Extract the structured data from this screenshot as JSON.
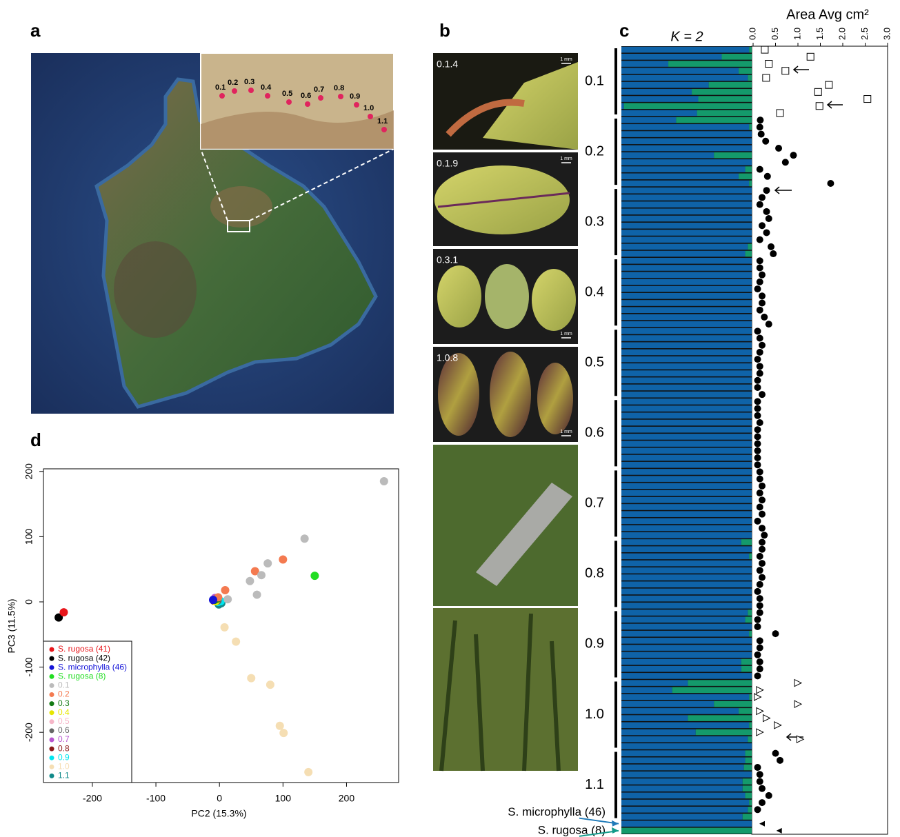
{
  "panel_labels": [
    "a",
    "b",
    "c",
    "d"
  ],
  "map": {
    "inset_labels": [
      "0.1",
      "0.2",
      "0.3",
      "0.4",
      "0.5",
      "0.6",
      "0.7",
      "0.8",
      "0.9",
      "1.0",
      "1.1"
    ]
  },
  "photos": {
    "labels": [
      "0.1.4",
      "0.1.9",
      "0.3.1",
      "1.0.8"
    ],
    "scale_bar": "1 mm"
  },
  "chart_data": [
    {
      "type": "structure",
      "structure_label": "K = 2",
      "area_axis_title": "Area Avg cm²",
      "cluster_colors": [
        "#0f63a8",
        "#149a6b"
      ],
      "xlim": [
        0,
        3
      ],
      "xticks": [
        {
          "value": 0,
          "label": "0.0"
        },
        0.5,
        {
          "value": 1,
          "label": "1.0"
        },
        1.5,
        {
          "value": 2,
          "label": "2.0"
        },
        2.5,
        {
          "value": 3,
          "label": "3.0"
        }
      ],
      "groups": [
        {
          "name": "0.1",
          "marker": "square",
          "q": [
            0.02,
            0.23,
            0.64,
            0.1,
            0.03,
            0.33,
            0.46,
            0.41,
            0.98,
            0.42
          ],
          "area": [
            0.26,
            1.28,
            0.35,
            0.72,
            0.29,
            1.69,
            1.45,
            2.55,
            1.48,
            0.6
          ]
        },
        {
          "name": "0.2",
          "marker": "circle",
          "q": [
            0.58,
            0.02,
            0,
            0,
            0,
            0.29,
            0,
            0.05,
            0.1,
            0.02
          ],
          "area": [
            0.16,
            0.15,
            0.18,
            0.28,
            0.57,
            0.9,
            0.72,
            0.15,
            0.32,
            1.73
          ]
        },
        {
          "name": "0.3",
          "marker": "circle",
          "q": [
            0,
            0,
            0,
            0,
            0,
            0,
            0,
            0,
            0.03,
            0.05
          ],
          "area": [
            0.3,
            0.2,
            0.15,
            0.3,
            0.35,
            0.2,
            0.3,
            0.15,
            0.4,
            0.45
          ]
        },
        {
          "name": "0.4",
          "marker": "circle",
          "q": [
            0,
            0,
            0,
            0,
            0,
            0,
            0,
            0,
            0,
            0
          ],
          "area": [
            0.15,
            0.15,
            0.2,
            0.15,
            0.1,
            0.2,
            0.2,
            0.15,
            0.25,
            0.35
          ]
        },
        {
          "name": "0.5",
          "marker": "circle",
          "q": [
            0,
            0,
            0,
            0,
            0,
            0,
            0,
            0,
            0,
            0
          ],
          "area": [
            0.1,
            0.15,
            0.2,
            0.15,
            0.1,
            0.15,
            0.15,
            0.1,
            0.1,
            0.2
          ]
        },
        {
          "name": "0.6",
          "marker": "circle",
          "q": [
            0,
            0,
            0,
            0,
            0,
            0,
            0,
            0,
            0,
            0
          ],
          "area": [
            0.1,
            0.1,
            0.1,
            0.15,
            0.1,
            0.1,
            0.1,
            0.1,
            0.1,
            0.1
          ]
        },
        {
          "name": "0.7",
          "marker": "circle",
          "q": [
            0,
            0,
            0,
            0,
            0,
            0,
            0,
            0,
            0,
            0
          ],
          "area": [
            0.15,
            0.15,
            0.2,
            0.15,
            0.2,
            0.15,
            0.2,
            0.1,
            0.2,
            0.25
          ]
        },
        {
          "name": "0.8",
          "marker": "circle",
          "q": [
            0.08,
            0,
            0.02,
            0,
            0,
            0,
            0,
            0,
            0,
            0
          ],
          "area": [
            0.2,
            0.2,
            0.15,
            0.2,
            0.15,
            0.2,
            0.15,
            0.1,
            0.15,
            0.15
          ]
        },
        {
          "name": "0.9",
          "marker": "circle",
          "q": [
            0.03,
            0.05,
            0,
            0.02,
            0,
            0,
            0,
            0.08,
            0.08,
            0
          ],
          "area": [
            0.15,
            0.1,
            0.1,
            0.5,
            0.15,
            0.15,
            0.1,
            0.15,
            0.15,
            0.1
          ]
        },
        {
          "name": "1.0",
          "marker": "triangle-right",
          "q": [
            0.49,
            0.61,
            0.02,
            0.29,
            0.1,
            0.49,
            0.02,
            0.43,
            0.03,
            0
          ],
          "area": [
            1.0,
            0.15,
            0.1,
            1.0,
            0.15,
            0.3,
            0.55,
            0.15,
            1.05,
            null
          ]
        },
        {
          "name": "1.1",
          "marker": "circle",
          "q": [
            0.05,
            0.05,
            0.06,
            0,
            0.07,
            0.07,
            0.05,
            0.02,
            0.03,
            0.07
          ],
          "area": [
            0.5,
            0.6,
            0.1,
            0.15,
            0.15,
            0.2,
            0.35,
            0.2,
            0.1,
            null
          ]
        },
        {
          "name": "S. microphylla (46)",
          "reference": true,
          "color": "#1f7ab8",
          "marker": "triangle-left",
          "q": [
            0
          ],
          "area": [
            0.2
          ]
        },
        {
          "name": "S. rugosa (8)",
          "reference": true,
          "color": "#149a8a",
          "marker": "triangle-left",
          "q": [
            1
          ],
          "area": [
            0.58
          ]
        }
      ]
    },
    {
      "type": "scatter",
      "x_label": "PC2 (15.3%)",
      "y_label": "PC3 (11.5%)",
      "xlim": [
        -277,
        282
      ],
      "ylim": [
        -277,
        204
      ],
      "xticks": [
        -200,
        -100,
        0,
        100,
        200
      ],
      "yticks": [
        -200,
        -100,
        0,
        100,
        200
      ],
      "series": [
        {
          "name": "S. rugosa (41)",
          "color": "#e8161b",
          "x": [
            -245
          ],
          "y": [
            -16
          ]
        },
        {
          "name": "S. rugosa (42)",
          "color": "#000000",
          "x": [
            -253
          ],
          "y": [
            -24
          ]
        },
        {
          "name": "S. microphylla (46)",
          "color": "#1414d8",
          "x": [
            -10
          ],
          "y": [
            3
          ]
        },
        {
          "name": "S. rugosa (8)",
          "color": "#22dd22",
          "x": [
            150
          ],
          "y": [
            40
          ]
        },
        {
          "name": "0.1",
          "color": "#bbbbbb",
          "x": [
            259,
            134,
            76,
            66,
            48,
            59,
            13
          ],
          "y": [
            185,
            97,
            59,
            41,
            32,
            11,
            4
          ]
        },
        {
          "name": "0.2",
          "color": "#f47a50",
          "x": [
            100,
            56,
            9,
            -2
          ],
          "y": [
            65,
            47,
            18,
            7
          ]
        },
        {
          "name": "0.3",
          "color": "#137a13",
          "x": [
            -8,
            -4
          ],
          "y": [
            3,
            5
          ]
        },
        {
          "name": "0.4",
          "color": "#e6e600",
          "x": [
            -6
          ],
          "y": [
            1
          ]
        },
        {
          "name": "0.5",
          "color": "#f6b6c8",
          "x": [
            -5
          ],
          "y": [
            4
          ]
        },
        {
          "name": "0.6",
          "color": "#666666",
          "x": [
            -3
          ],
          "y": [
            2
          ]
        },
        {
          "name": "0.7",
          "color": "#b855d0",
          "x": [
            -7
          ],
          "y": [
            6
          ]
        },
        {
          "name": "0.8",
          "color": "#8b1a1a",
          "x": [
            -9
          ],
          "y": [
            2
          ]
        },
        {
          "name": "0.9",
          "color": "#00e5ee",
          "x": [
            -2,
            2
          ],
          "y": [
            0,
            1
          ]
        },
        {
          "name": "1.0",
          "color": "#f5deb3",
          "x": [
            8,
            26,
            50,
            80,
            95,
            101,
            140
          ],
          "y": [
            -39,
            -61,
            -117,
            -127,
            -190,
            -201,
            -261
          ]
        },
        {
          "name": "1.1",
          "color": "#118a8a",
          "x": [
            0,
            3,
            -1
          ],
          "y": [
            -3,
            -2,
            -4
          ]
        }
      ]
    }
  ]
}
